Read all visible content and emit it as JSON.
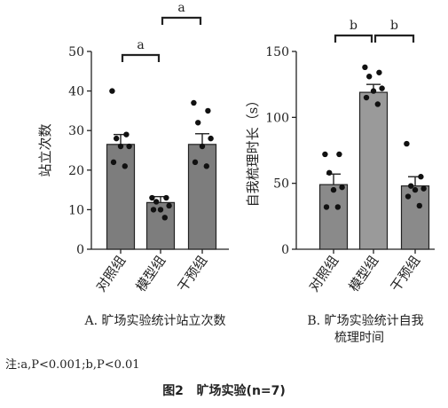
{
  "figure": {
    "caption_label": "图2",
    "caption_text": "旷场实验(n=7)",
    "note": "注:a,P<0.001;b,P<0.01"
  },
  "chart_data": [
    {
      "type": "bar",
      "panel_label": "A. 旷场实验统计站立次数",
      "ylabel": "站立次数",
      "ylim": [
        0,
        50
      ],
      "yticks": [
        0,
        10,
        20,
        30,
        40,
        50
      ],
      "categories": [
        "对照组",
        "模型组",
        "干预组"
      ],
      "values": [
        26.5,
        11.8,
        26.5
      ],
      "errors": [
        2.5,
        1.5,
        2.7
      ],
      "points": [
        [
          40,
          29,
          28,
          26,
          26,
          22,
          21
        ],
        [
          13,
          13,
          12,
          11,
          10,
          10,
          8
        ],
        [
          37,
          35,
          32,
          28,
          26,
          22,
          21
        ]
      ],
      "brackets": [
        {
          "from": 0,
          "to": 1,
          "label": "a",
          "level": 0
        },
        {
          "from": 1,
          "to": 2,
          "label": "a",
          "level": 1
        }
      ],
      "bar_colors": [
        "#7d7d7d",
        "#7d7d7d",
        "#7d7d7d"
      ]
    },
    {
      "type": "bar",
      "panel_label_line1": "B. 旷场实验统计自我",
      "panel_label_line2": "梳理时间",
      "ylabel": "自我梳理时长（s）",
      "ylim": [
        0,
        150
      ],
      "yticks": [
        0,
        50,
        100,
        150
      ],
      "categories": [
        "对照组",
        "模型组",
        "干预组"
      ],
      "values": [
        49,
        119,
        48
      ],
      "errors": [
        8,
        6,
        7
      ],
      "points": [
        [
          72,
          72,
          58,
          47,
          45,
          32,
          32
        ],
        [
          138,
          134,
          131,
          122,
          120,
          115,
          110
        ],
        [
          80,
          55,
          48,
          46,
          45,
          40,
          33
        ]
      ],
      "brackets": [
        {
          "from": 0,
          "to": 1,
          "label": "b",
          "level": 0
        },
        {
          "from": 1,
          "to": 2,
          "label": "b",
          "level": 0
        }
      ],
      "bar_colors": [
        "#8a8a8a",
        "#9a9a9a",
        "#8a8a8a"
      ]
    }
  ]
}
